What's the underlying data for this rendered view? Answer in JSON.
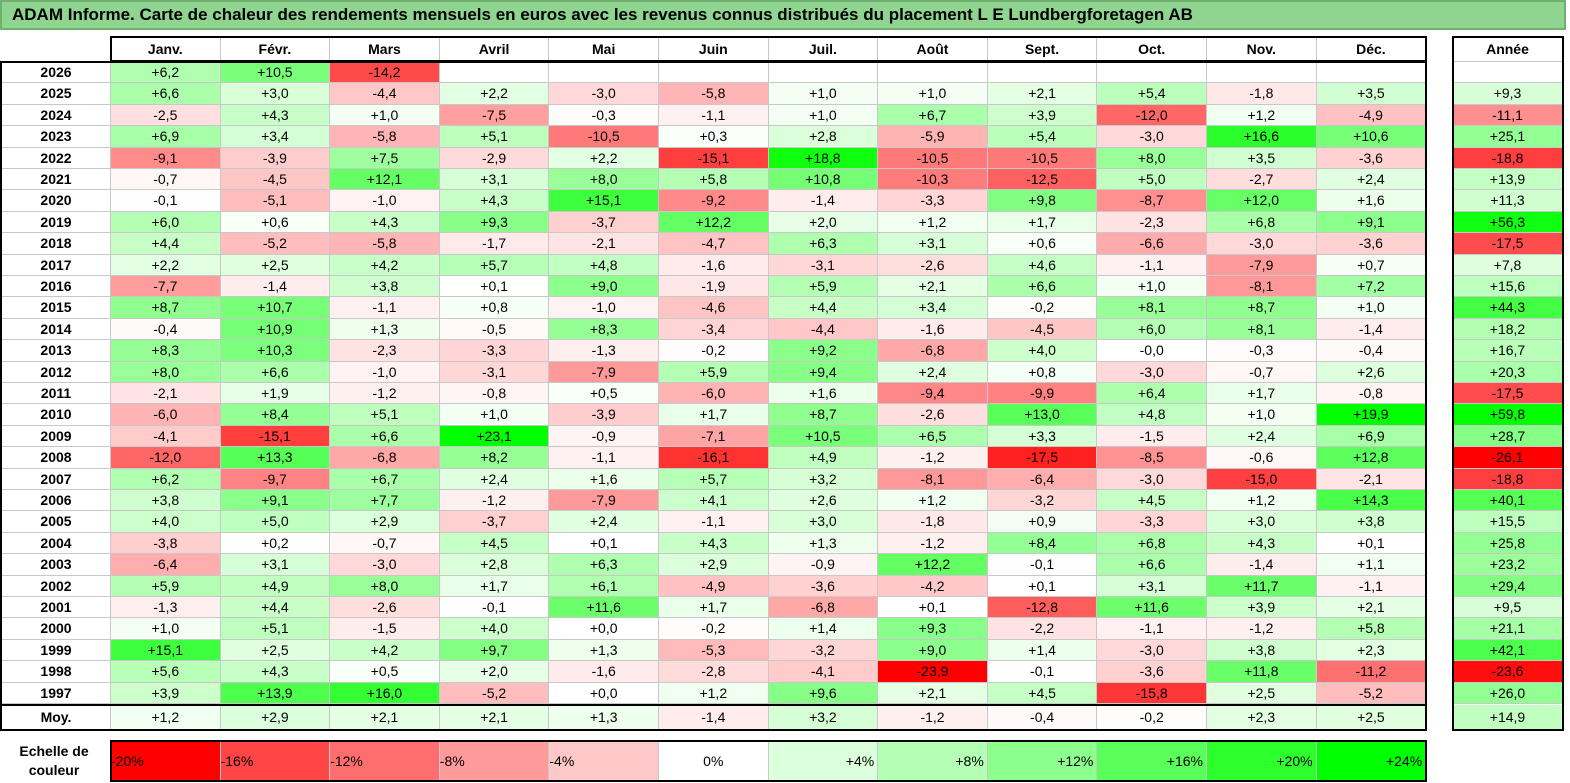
{
  "title": "ADAM Informe. Carte de chaleur des rendements mensuels en euros avec les revenus connus distribués du placement L E Lundbergforetagen AB",
  "chart_data": {
    "type": "heatmap",
    "columns": [
      "Janv.",
      "Févr.",
      "Mars",
      "Avril",
      "Mai",
      "Juin",
      "Juil.",
      "Août",
      "Sept.",
      "Oct.",
      "Nov.",
      "Déc."
    ],
    "year_column_label": "Année",
    "rows": [
      {
        "year": "2026",
        "values": [
          "+6,2",
          "+10,5",
          "-14,2",
          "",
          "",
          "",
          "",
          "",
          "",
          "",
          "",
          ""
        ],
        "annual": ""
      },
      {
        "year": "2025",
        "values": [
          "+6,6",
          "+3,0",
          "-4,4",
          "+2,2",
          "-3,0",
          "-5,8",
          "+1,0",
          "+1,0",
          "+2,1",
          "+5,4",
          "-1,8",
          "+3,5"
        ],
        "annual": "+9,3"
      },
      {
        "year": "2024",
        "values": [
          "-2,5",
          "+4,3",
          "+1,0",
          "-7,5",
          "-0,3",
          "-1,1",
          "+1,0",
          "+6,7",
          "+3,9",
          "-12,0",
          "+1,2",
          "-4,9"
        ],
        "annual": "-11,1"
      },
      {
        "year": "2023",
        "values": [
          "+6,9",
          "+3,4",
          "-5,8",
          "+5,1",
          "-10,5",
          "+0,3",
          "+2,8",
          "-5,9",
          "+5,4",
          "-3,0",
          "+16,6",
          "+10,6"
        ],
        "annual": "+25,1"
      },
      {
        "year": "2022",
        "values": [
          "-9,1",
          "-3,9",
          "+7,5",
          "-2,9",
          "+2,2",
          "-15,1",
          "+18,8",
          "-10,5",
          "-10,5",
          "+8,0",
          "+3,5",
          "-3,6"
        ],
        "annual": "-18,8"
      },
      {
        "year": "2021",
        "values": [
          "-0,7",
          "-4,5",
          "+12,1",
          "+3,1",
          "+8,0",
          "+5,8",
          "+10,8",
          "-10,3",
          "-12,5",
          "+5,0",
          "-2,7",
          "+2,4"
        ],
        "annual": "+13,9"
      },
      {
        "year": "2020",
        "values": [
          "-0,1",
          "-5,1",
          "-1,0",
          "+4,3",
          "+15,1",
          "-9,2",
          "-1,4",
          "-3,3",
          "+9,8",
          "-8,7",
          "+12,0",
          "+1,6"
        ],
        "annual": "+11,3"
      },
      {
        "year": "2019",
        "values": [
          "+6,0",
          "+0,6",
          "+4,3",
          "+9,3",
          "-3,7",
          "+12,2",
          "+2,0",
          "+1,2",
          "+1,7",
          "-2,3",
          "+6,8",
          "+9,1"
        ],
        "annual": "+56,3"
      },
      {
        "year": "2018",
        "values": [
          "+4,4",
          "-5,2",
          "-5,8",
          "-1,7",
          "-2,1",
          "-4,7",
          "+6,3",
          "+3,1",
          "+0,6",
          "-6,6",
          "-3,0",
          "-3,6"
        ],
        "annual": "-17,5"
      },
      {
        "year": "2017",
        "values": [
          "+2,2",
          "+2,5",
          "+4,2",
          "+5,7",
          "+4,8",
          "-1,6",
          "-3,1",
          "-2,6",
          "+4,6",
          "-1,1",
          "-7,9",
          "+0,7"
        ],
        "annual": "+7,8"
      },
      {
        "year": "2016",
        "values": [
          "-7,7",
          "-1,4",
          "+3,8",
          "+0,1",
          "+9,0",
          "-1,9",
          "+5,9",
          "+2,1",
          "+6,6",
          "+1,0",
          "-8,1",
          "+7,2"
        ],
        "annual": "+15,6"
      },
      {
        "year": "2015",
        "values": [
          "+8,7",
          "+10,7",
          "-1,1",
          "+0,8",
          "-1,0",
          "-4,6",
          "+4,4",
          "+3,4",
          "-0,2",
          "+8,1",
          "+8,7",
          "+1,0"
        ],
        "annual": "+44,3"
      },
      {
        "year": "2014",
        "values": [
          "-0,4",
          "+10,9",
          "+1,3",
          "-0,5",
          "+8,3",
          "-3,4",
          "-4,4",
          "-1,6",
          "-4,5",
          "+6,0",
          "+8,1",
          "-1,4"
        ],
        "annual": "+18,2"
      },
      {
        "year": "2013",
        "values": [
          "+8,3",
          "+10,3",
          "-2,3",
          "-3,3",
          "-1,3",
          "-0,2",
          "+9,2",
          "-6,8",
          "+4,0",
          "-0,0",
          "-0,3",
          "-0,4"
        ],
        "annual": "+16,7"
      },
      {
        "year": "2012",
        "values": [
          "+8,0",
          "+6,6",
          "-1,0",
          "-3,1",
          "-7,9",
          "+5,9",
          "+9,4",
          "+2,4",
          "+0,8",
          "-3,0",
          "-0,7",
          "+2,6"
        ],
        "annual": "+20,3"
      },
      {
        "year": "2011",
        "values": [
          "-2,1",
          "+1,9",
          "-1,2",
          "-0,8",
          "+0,5",
          "-6,0",
          "+1,6",
          "-9,4",
          "-9,9",
          "+6,4",
          "+1,7",
          "-0,8"
        ],
        "annual": "-17,5"
      },
      {
        "year": "2010",
        "values": [
          "-6,0",
          "+8,4",
          "+5,1",
          "+1,0",
          "-3,9",
          "+1,7",
          "+8,7",
          "-2,6",
          "+13,0",
          "+4,8",
          "+1,0",
          "+19,9"
        ],
        "annual": "+59,8"
      },
      {
        "year": "2009",
        "values": [
          "-4,1",
          "-15,1",
          "+6,6",
          "+23,1",
          "-0,9",
          "-7,1",
          "+10,5",
          "+6,5",
          "+3,3",
          "-1,5",
          "+2,4",
          "+6,9"
        ],
        "annual": "+28,7"
      },
      {
        "year": "2008",
        "values": [
          "-12,0",
          "+13,3",
          "-6,8",
          "+8,2",
          "-1,1",
          "-16,1",
          "+4,9",
          "-1,2",
          "-17,5",
          "-8,5",
          "-0,6",
          "+12,8"
        ],
        "annual": "-26,1"
      },
      {
        "year": "2007",
        "values": [
          "+6,2",
          "-9,7",
          "+6,7",
          "+2,4",
          "+1,6",
          "+5,7",
          "+3,2",
          "-8,1",
          "-6,4",
          "-3,0",
          "-15,0",
          "-2,1"
        ],
        "annual": "-18,8"
      },
      {
        "year": "2006",
        "values": [
          "+3,8",
          "+9,1",
          "+7,7",
          "-1,2",
          "-7,9",
          "+4,1",
          "+2,6",
          "+1,2",
          "-3,2",
          "+4,5",
          "+1,2",
          "+14,3"
        ],
        "annual": "+40,1"
      },
      {
        "year": "2005",
        "values": [
          "+4,0",
          "+5,0",
          "+2,9",
          "-3,7",
          "+2,4",
          "-1,1",
          "+3,0",
          "-1,8",
          "+0,9",
          "-3,3",
          "+3,0",
          "+3,8"
        ],
        "annual": "+15,5"
      },
      {
        "year": "2004",
        "values": [
          "-3,8",
          "+0,2",
          "-0,7",
          "+4,5",
          "+0,1",
          "+4,3",
          "+1,3",
          "-1,2",
          "+8,4",
          "+6,8",
          "+4,3",
          "+0,1"
        ],
        "annual": "+25,8"
      },
      {
        "year": "2003",
        "values": [
          "-6,4",
          "+3,1",
          "-3,0",
          "+2,8",
          "+6,3",
          "+2,9",
          "-0,9",
          "+12,2",
          "-0,1",
          "+6,6",
          "-1,4",
          "+1,1"
        ],
        "annual": "+23,2"
      },
      {
        "year": "2002",
        "values": [
          "+5,9",
          "+4,9",
          "+8,0",
          "+1,7",
          "+6,1",
          "-4,9",
          "-3,6",
          "-4,2",
          "+0,1",
          "+3,1",
          "+11,7",
          "-1,1"
        ],
        "annual": "+29,4"
      },
      {
        "year": "2001",
        "values": [
          "-1,3",
          "+4,4",
          "-2,6",
          "-0,1",
          "+11,6",
          "+1,7",
          "-6,8",
          "+0,1",
          "-12,8",
          "+11,6",
          "+3,9",
          "+2,1"
        ],
        "annual": "+9,5"
      },
      {
        "year": "2000",
        "values": [
          "+1,0",
          "+5,1",
          "-1,5",
          "+4,0",
          "+0,0",
          "-0,2",
          "+1,4",
          "+9,3",
          "-2,2",
          "-1,1",
          "-1,2",
          "+5,8"
        ],
        "annual": "+21,1"
      },
      {
        "year": "1999",
        "values": [
          "+15,1",
          "+2,5",
          "+4,2",
          "+9,7",
          "+1,3",
          "-5,3",
          "-3,2",
          "+9,0",
          "+1,4",
          "-3,0",
          "+3,8",
          "+2,3"
        ],
        "annual": "+42,1"
      },
      {
        "year": "1998",
        "values": [
          "+5,6",
          "+4,3",
          "+0,5",
          "+2,0",
          "-1,6",
          "-2,8",
          "-4,1",
          "-23,9",
          "-0,1",
          "-3,6",
          "+11,8",
          "-11,2"
        ],
        "annual": "-23,6"
      },
      {
        "year": "1997",
        "values": [
          "+3,9",
          "+13,9",
          "+16,0",
          "-5,2",
          "+0,0",
          "+1,2",
          "+9,6",
          "+2,1",
          "+4,5",
          "-15,8",
          "+2,5",
          "-5,2"
        ],
        "annual": "+26,0"
      }
    ],
    "average": {
      "label": "Moy.",
      "values": [
        "+1,2",
        "+2,9",
        "+2,1",
        "+2,1",
        "+1,3",
        "-1,4",
        "+3,2",
        "-1,2",
        "-0,4",
        "-0,2",
        "+2,3",
        "+2,5"
      ],
      "annual": "+14,9"
    },
    "scale": {
      "label": "Echelle de couleur",
      "steps": [
        "-20%",
        "-16%",
        "-12%",
        "-8%",
        "-4%",
        "0%",
        "+4%",
        "+8%",
        "+12%",
        "+16%",
        "+20%",
        "+24%"
      ],
      "colors": [
        "#ff0000",
        "#ff4545",
        "#ff6e6e",
        "#ff9a9a",
        "#ffc8c8",
        "#ffffff",
        "#dcffdc",
        "#b4ffb4",
        "#8cff8c",
        "#5aff5a",
        "#2cff2c",
        "#00ff00"
      ]
    },
    "monthly_color_range": [
      -20,
      20
    ],
    "annual_color_range": [
      -25,
      60
    ]
  }
}
